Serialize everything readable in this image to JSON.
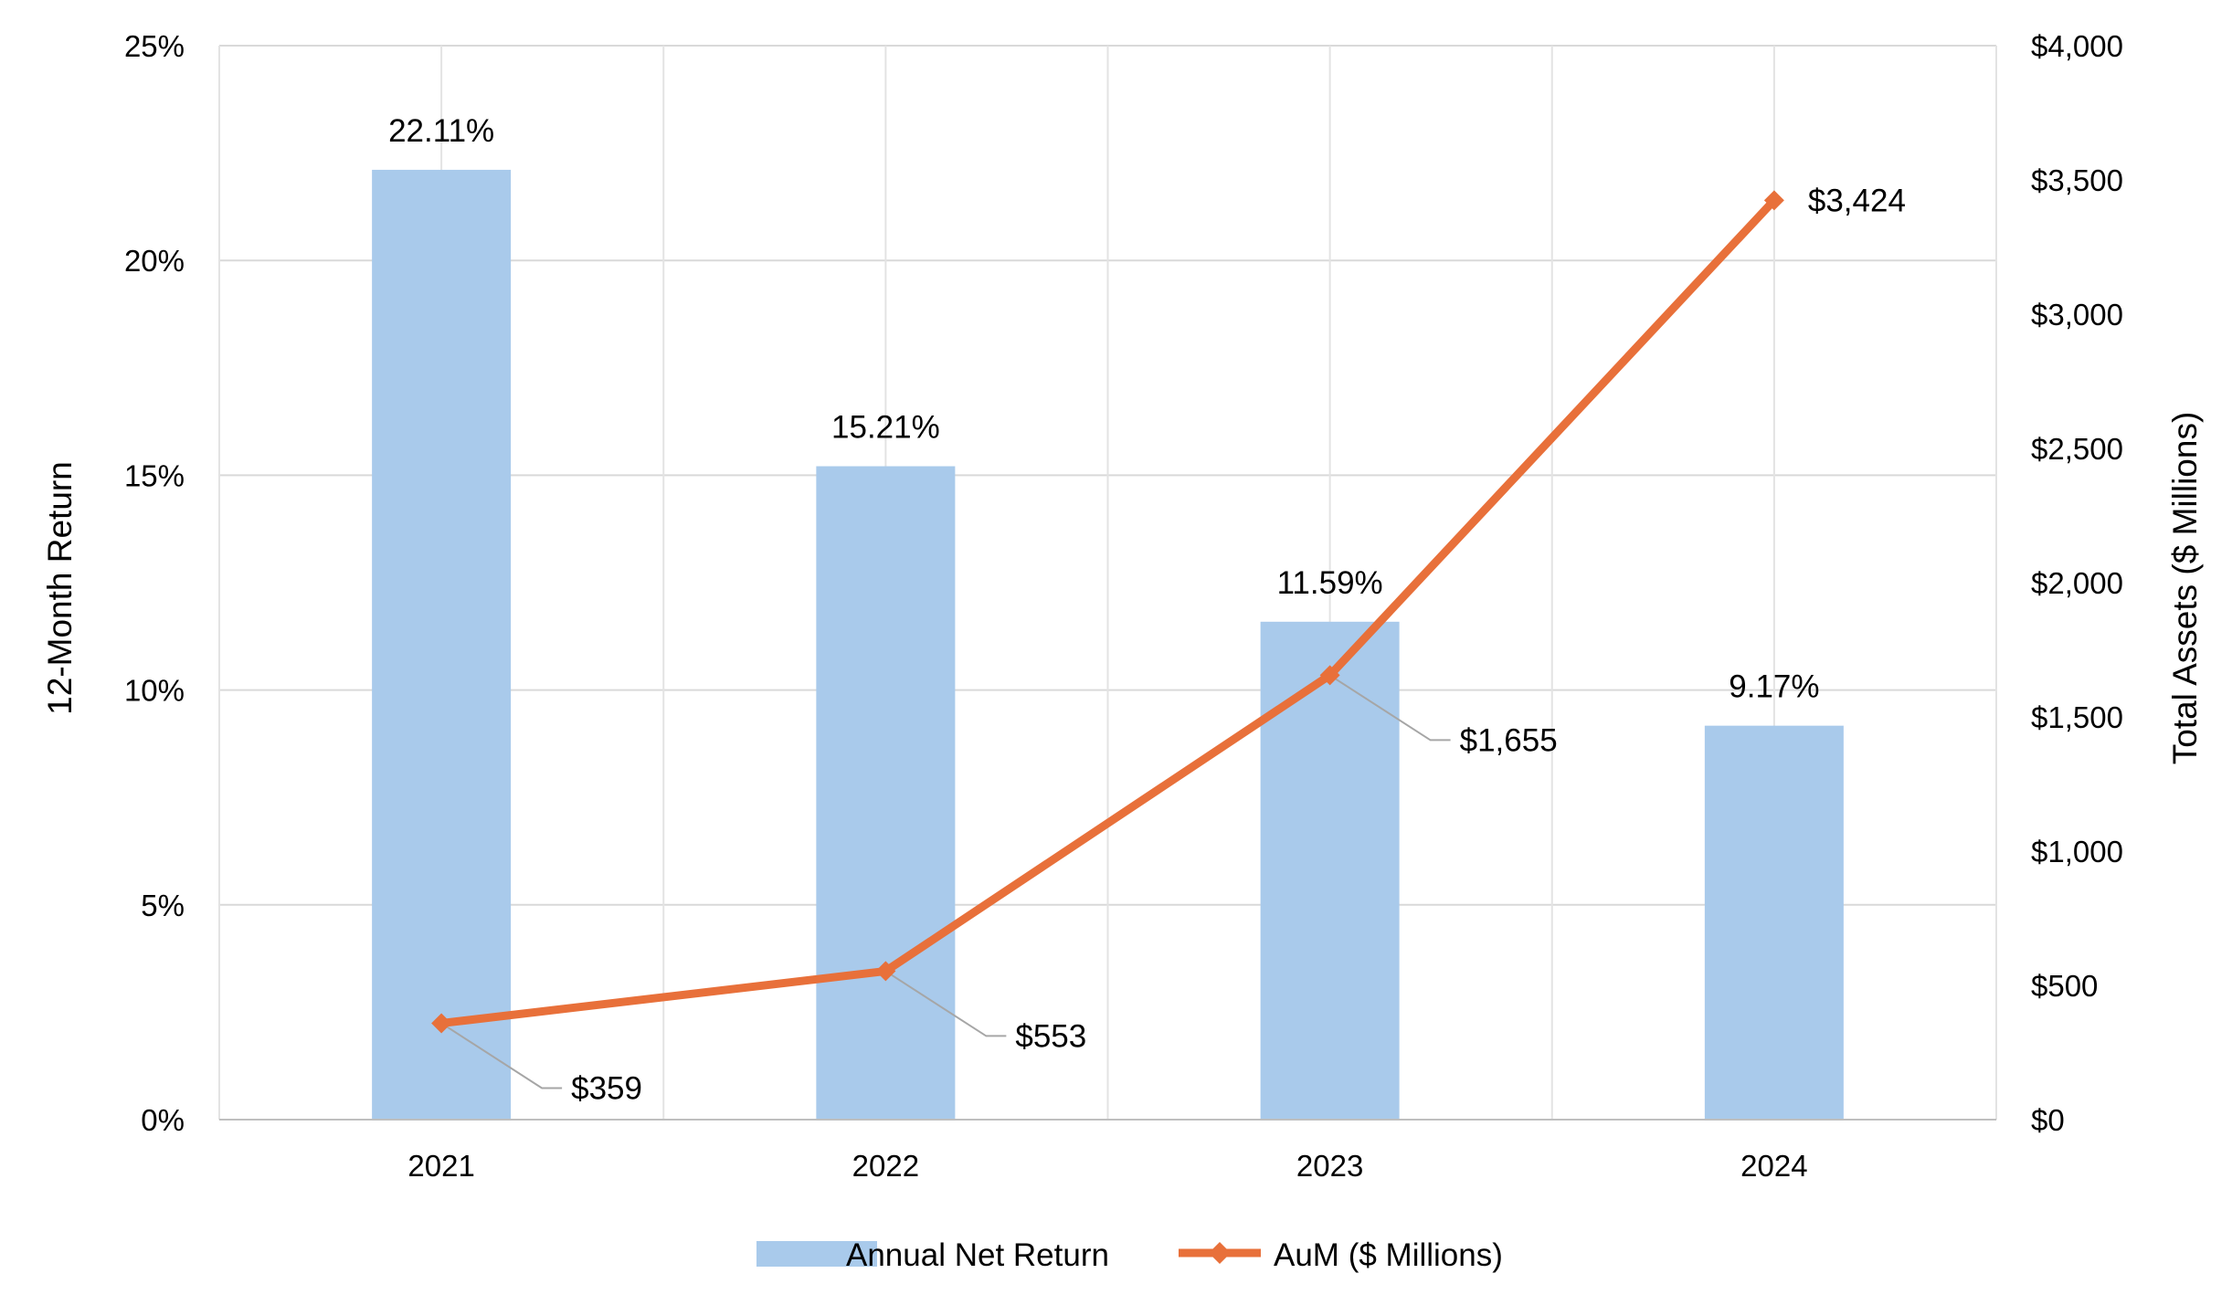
{
  "chart_data": {
    "type": "bar",
    "categories": [
      "2021",
      "2022",
      "2023",
      "2024"
    ],
    "series": [
      {
        "name": "Annual Net Return",
        "type": "bar",
        "axis": "left",
        "values": [
          22.11,
          15.21,
          11.59,
          9.17
        ],
        "labels": [
          "22.11%",
          "15.21%",
          "11.59%",
          "9.17%"
        ],
        "color": "#a9caeb"
      },
      {
        "name": "AuM ($ Millions)",
        "type": "line",
        "axis": "right",
        "values": [
          359,
          553,
          1655,
          3424
        ],
        "labels": [
          "$359",
          "$553",
          "$1,655",
          "$3,424"
        ],
        "color": "#e8703a",
        "marker": "diamond"
      }
    ],
    "ylabel": "12-Month Return",
    "y2label": "Total Assets ($ Millions)",
    "ylim": [
      0,
      25
    ],
    "y2lim": [
      0,
      4000
    ],
    "yticks": [
      "0%",
      "5%",
      "10%",
      "15%",
      "20%",
      "25%"
    ],
    "y2ticks": [
      "$0",
      "$500",
      "$1,000",
      "$1,500",
      "$2,000",
      "$2,500",
      "$3,000",
      "$3,500",
      "$4,000"
    ],
    "grid": true,
    "legend": "bottom"
  }
}
